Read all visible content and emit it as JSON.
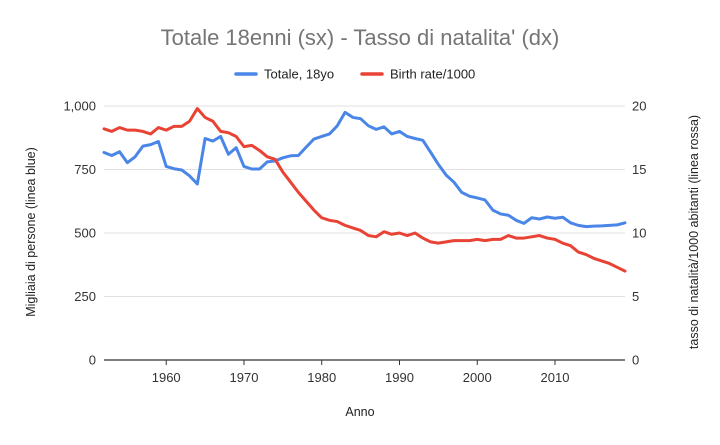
{
  "chart_data": {
    "type": "line",
    "title": "Totale 18enni (sx) - Tasso di natalita' (dx)",
    "xlabel": "Anno",
    "ylabel": "Migliaia di persone (linea blue)",
    "y2label": "tasso di natalità/1000 abitanti (linea rossa)",
    "xlim": [
      1952,
      2019
    ],
    "ylim": [
      0,
      1000
    ],
    "y2lim": [
      0,
      20
    ],
    "x_ticks": [
      1960,
      1970,
      1980,
      1990,
      2000,
      2010
    ],
    "x_tick_labels": [
      "1960",
      "1970",
      "1980",
      "1990",
      "2000",
      "2010"
    ],
    "y_ticks": [
      0,
      250,
      500,
      750,
      1000
    ],
    "y_tick_labels": [
      "0",
      "250",
      "500",
      "750",
      "1,000"
    ],
    "y2_ticks": [
      0,
      5,
      10,
      15,
      20
    ],
    "y2_tick_labels": [
      "0",
      "5",
      "10",
      "15",
      "20"
    ],
    "grid": true,
    "legend_position": "top-center",
    "series": [
      {
        "name": "Totale, 18yo",
        "axis": "left",
        "color": "#4a86e8",
        "x": [
          1952,
          1953,
          1954,
          1955,
          1956,
          1957,
          1958,
          1959,
          1960,
          1961,
          1962,
          1963,
          1964,
          1965,
          1966,
          1967,
          1968,
          1969,
          1970,
          1971,
          1972,
          1973,
          1974,
          1975,
          1976,
          1977,
          1978,
          1979,
          1980,
          1981,
          1982,
          1983,
          1984,
          1985,
          1986,
          1987,
          1988,
          1989,
          1990,
          1991,
          1992,
          1993,
          1994,
          1995,
          1996,
          1997,
          1998,
          1999,
          2000,
          2001,
          2002,
          2003,
          2004,
          2005,
          2006,
          2007,
          2008,
          2009,
          2010,
          2011,
          2012,
          2013,
          2014,
          2015,
          2016,
          2017,
          2018,
          2019
        ],
        "values": [
          817,
          805,
          820,
          777,
          800,
          842,
          848,
          860,
          762,
          753,
          748,
          725,
          693,
          872,
          862,
          880,
          810,
          836,
          762,
          752,
          752,
          780,
          784,
          796,
          804,
          805,
          838,
          870,
          880,
          890,
          922,
          975,
          955,
          950,
          922,
          908,
          918,
          890,
          900,
          880,
          872,
          865,
          818,
          770,
          728,
          700,
          660,
          645,
          638,
          630,
          590,
          575,
          570,
          550,
          538,
          560,
          555,
          563,
          558,
          562,
          540,
          530,
          525,
          527,
          528,
          530,
          532,
          540
        ]
      },
      {
        "name": "Birth rate/1000",
        "axis": "right",
        "color": "#e84335",
        "x": [
          1952,
          1953,
          1954,
          1955,
          1956,
          1957,
          1958,
          1959,
          1960,
          1961,
          1962,
          1963,
          1964,
          1965,
          1966,
          1967,
          1968,
          1969,
          1970,
          1971,
          1972,
          1973,
          1974,
          1975,
          1976,
          1977,
          1978,
          1979,
          1980,
          1981,
          1982,
          1983,
          1984,
          1985,
          1986,
          1987,
          1988,
          1989,
          1990,
          1991,
          1992,
          1993,
          1994,
          1995,
          1996,
          1997,
          1998,
          1999,
          2000,
          2001,
          2002,
          2003,
          2004,
          2005,
          2006,
          2007,
          2008,
          2009,
          2010,
          2011,
          2012,
          2013,
          2014,
          2015,
          2016,
          2017,
          2018,
          2019
        ],
        "values": [
          18.2,
          18.0,
          18.3,
          18.1,
          18.1,
          18.0,
          17.8,
          18.3,
          18.1,
          18.4,
          18.4,
          18.8,
          19.8,
          19.1,
          18.8,
          18.0,
          17.9,
          17.6,
          16.8,
          16.9,
          16.5,
          16.0,
          15.8,
          14.8,
          14.0,
          13.2,
          12.5,
          11.8,
          11.2,
          11.0,
          10.9,
          10.6,
          10.4,
          10.2,
          9.8,
          9.7,
          10.1,
          9.9,
          10.0,
          9.8,
          10.0,
          9.6,
          9.3,
          9.2,
          9.3,
          9.4,
          9.4,
          9.4,
          9.5,
          9.4,
          9.5,
          9.5,
          9.8,
          9.6,
          9.6,
          9.7,
          9.8,
          9.6,
          9.5,
          9.2,
          9.0,
          8.5,
          8.3,
          8.0,
          7.8,
          7.6,
          7.3,
          7.0
        ]
      }
    ]
  }
}
